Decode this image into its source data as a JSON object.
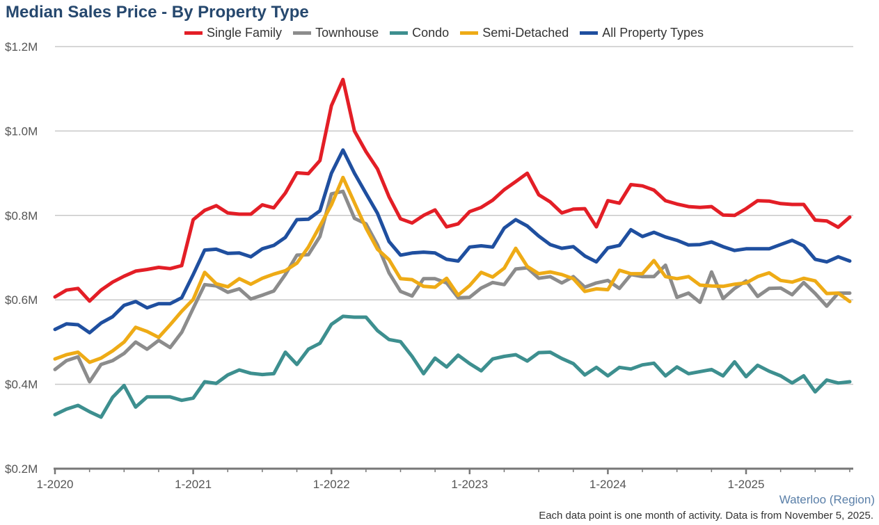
{
  "chart_data": {
    "type": "line",
    "title": "Median Sales Price - By Property Type",
    "x_ticks": [
      "1-2020",
      "1-2021",
      "1-2022",
      "1-2023",
      "1-2024",
      "1-2025"
    ],
    "x_start": "2020-01",
    "y_ticks": [
      "$0.2M",
      "$0.4M",
      "$0.6M",
      "$0.8M",
      "$1.0M",
      "$1.2M"
    ],
    "ylim": [
      0.2,
      1.2
    ],
    "unit": "$M",
    "grid": "horizontal",
    "legend_position": "top",
    "series": [
      {
        "name": "Single Family",
        "color": "#e31e26",
        "values": [
          0.607,
          0.623,
          0.627,
          0.597,
          0.623,
          0.642,
          0.656,
          0.668,
          0.672,
          0.677,
          0.674,
          0.681,
          0.79,
          0.812,
          0.823,
          0.806,
          0.803,
          0.803,
          0.825,
          0.818,
          0.853,
          0.901,
          0.899,
          0.93,
          1.06,
          1.122,
          1.0,
          0.951,
          0.91,
          0.844,
          0.792,
          0.782,
          0.8,
          0.813,
          0.773,
          0.78,
          0.809,
          0.819,
          0.836,
          0.861,
          0.88,
          0.9,
          0.849,
          0.832,
          0.806,
          0.815,
          0.816,
          0.773,
          0.835,
          0.829,
          0.873,
          0.87,
          0.86,
          0.835,
          0.827,
          0.821,
          0.819,
          0.821,
          0.801,
          0.8,
          0.816,
          0.835,
          0.834,
          0.828,
          0.826,
          0.826,
          0.789,
          0.787,
          0.772,
          0.796
        ]
      },
      {
        "name": "Townhouse",
        "color": "#8c8c8c",
        "values": [
          0.435,
          0.456,
          0.465,
          0.406,
          0.447,
          0.456,
          0.473,
          0.5,
          0.483,
          0.504,
          0.487,
          0.523,
          0.58,
          0.636,
          0.633,
          0.618,
          0.626,
          0.602,
          0.611,
          0.621,
          0.66,
          0.706,
          0.707,
          0.75,
          0.851,
          0.857,
          0.793,
          0.78,
          0.73,
          0.664,
          0.62,
          0.609,
          0.65,
          0.65,
          0.64,
          0.605,
          0.606,
          0.628,
          0.641,
          0.636,
          0.673,
          0.676,
          0.651,
          0.655,
          0.64,
          0.655,
          0.63,
          0.64,
          0.646,
          0.627,
          0.66,
          0.655,
          0.655,
          0.682,
          0.606,
          0.616,
          0.594,
          0.666,
          0.603,
          0.627,
          0.645,
          0.608,
          0.627,
          0.628,
          0.612,
          0.641,
          0.615,
          0.585,
          0.616,
          0.616
        ]
      },
      {
        "name": "Condo",
        "color": "#3d8f8f",
        "values": [
          0.328,
          0.341,
          0.35,
          0.335,
          0.322,
          0.369,
          0.397,
          0.346,
          0.37,
          0.37,
          0.37,
          0.362,
          0.367,
          0.406,
          0.402,
          0.422,
          0.434,
          0.426,
          0.423,
          0.425,
          0.476,
          0.447,
          0.483,
          0.497,
          0.542,
          0.561,
          0.559,
          0.559,
          0.527,
          0.506,
          0.501,
          0.466,
          0.425,
          0.462,
          0.441,
          0.469,
          0.449,
          0.432,
          0.46,
          0.466,
          0.47,
          0.455,
          0.475,
          0.476,
          0.461,
          0.449,
          0.422,
          0.44,
          0.42,
          0.44,
          0.436,
          0.446,
          0.45,
          0.42,
          0.441,
          0.425,
          0.43,
          0.435,
          0.42,
          0.453,
          0.418,
          0.445,
          0.431,
          0.42,
          0.403,
          0.42,
          0.382,
          0.41,
          0.403,
          0.406
        ]
      },
      {
        "name": "Semi-Detached",
        "color": "#eeab16",
        "values": [
          0.46,
          0.47,
          0.476,
          0.452,
          0.462,
          0.479,
          0.5,
          0.535,
          0.525,
          0.511,
          0.541,
          0.573,
          0.601,
          0.665,
          0.638,
          0.631,
          0.65,
          0.637,
          0.651,
          0.661,
          0.669,
          0.687,
          0.725,
          0.775,
          0.825,
          0.89,
          0.83,
          0.77,
          0.72,
          0.695,
          0.65,
          0.648,
          0.632,
          0.63,
          0.651,
          0.611,
          0.634,
          0.665,
          0.654,
          0.675,
          0.722,
          0.679,
          0.662,
          0.666,
          0.66,
          0.65,
          0.62,
          0.626,
          0.624,
          0.67,
          0.662,
          0.662,
          0.693,
          0.655,
          0.65,
          0.655,
          0.635,
          0.633,
          0.632,
          0.637,
          0.64,
          0.655,
          0.664,
          0.646,
          0.642,
          0.651,
          0.645,
          0.615,
          0.616,
          0.596
        ]
      },
      {
        "name": "All Property Types",
        "color": "#1f4f9f",
        "values": [
          0.53,
          0.543,
          0.541,
          0.522,
          0.545,
          0.56,
          0.587,
          0.596,
          0.581,
          0.591,
          0.591,
          0.605,
          0.66,
          0.718,
          0.72,
          0.71,
          0.711,
          0.702,
          0.721,
          0.729,
          0.748,
          0.79,
          0.791,
          0.811,
          0.9,
          0.955,
          0.9,
          0.852,
          0.805,
          0.738,
          0.706,
          0.711,
          0.713,
          0.711,
          0.696,
          0.692,
          0.725,
          0.728,
          0.725,
          0.77,
          0.79,
          0.775,
          0.751,
          0.731,
          0.722,
          0.726,
          0.704,
          0.69,
          0.723,
          0.729,
          0.766,
          0.75,
          0.76,
          0.749,
          0.741,
          0.73,
          0.731,
          0.737,
          0.726,
          0.717,
          0.721,
          0.721,
          0.721,
          0.731,
          0.741,
          0.728,
          0.696,
          0.69,
          0.702,
          0.692
        ]
      }
    ]
  },
  "region_label": "Waterloo (Region)",
  "footnote": "Each data point is one month of activity. Data is from November 5, 2025."
}
